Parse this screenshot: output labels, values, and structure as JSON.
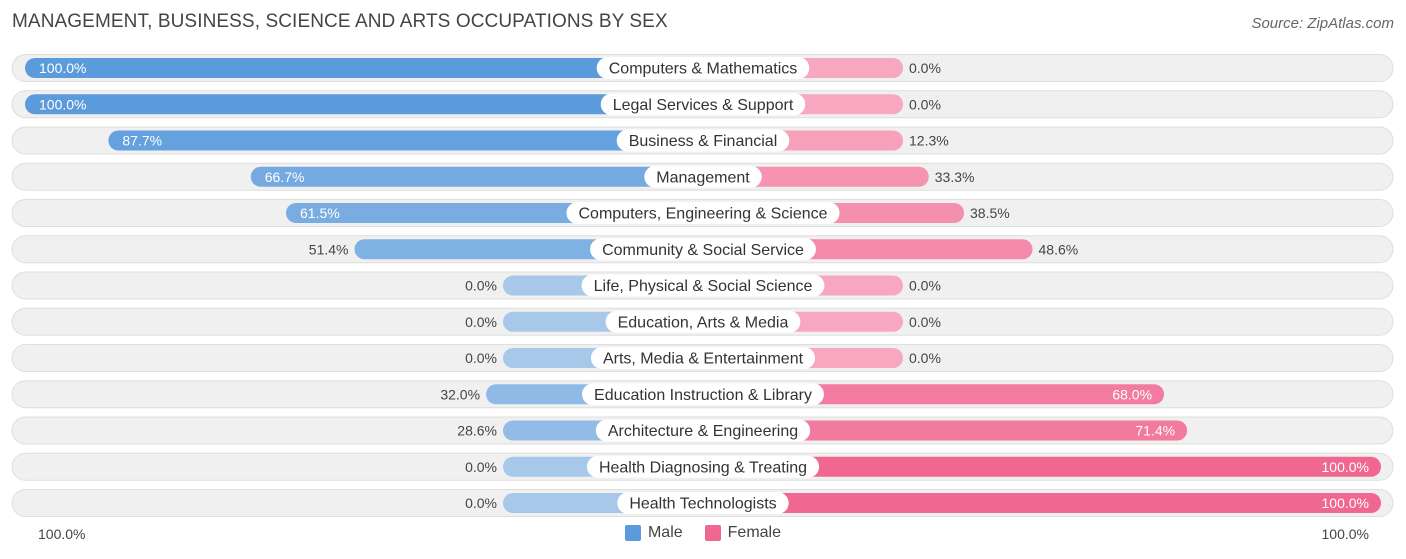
{
  "title": "MANAGEMENT, BUSINESS, SCIENCE AND ARTS OCCUPATIONS BY SEX",
  "source": "Source: ZipAtlas.com",
  "colors": {
    "male_strong": "#5b9bdc",
    "male_light": "#a8c8ea",
    "female_strong": "#f06892",
    "female_light": "#f7a8c0",
    "row_bg": "#f0f0f0",
    "row_border": "#dedede"
  },
  "legend": {
    "male": "Male",
    "female": "Female"
  },
  "axis": {
    "left": "100.0%",
    "right": "100.0%"
  },
  "chart_data": {
    "type": "bar",
    "orientation": "horizontal-diverging",
    "title": "MANAGEMENT, BUSINESS, SCIENCE AND ARTS OCCUPATIONS BY SEX",
    "categories": [
      "Computers & Mathematics",
      "Legal Services & Support",
      "Business & Financial",
      "Management",
      "Computers, Engineering & Science",
      "Community & Social Service",
      "Life, Physical & Social Science",
      "Education, Arts & Media",
      "Arts, Media & Entertainment",
      "Education Instruction & Library",
      "Architecture & Engineering",
      "Health Diagnosing & Treating",
      "Health Technologists"
    ],
    "series": [
      {
        "name": "Male",
        "values": [
          100.0,
          100.0,
          87.7,
          66.7,
          61.5,
          51.4,
          0.0,
          0.0,
          0.0,
          32.0,
          28.6,
          0.0,
          0.0
        ],
        "labels": [
          "100.0%",
          "100.0%",
          "87.7%",
          "66.7%",
          "61.5%",
          "51.4%",
          "0.0%",
          "0.0%",
          "0.0%",
          "32.0%",
          "28.6%",
          "0.0%",
          "0.0%"
        ]
      },
      {
        "name": "Female",
        "values": [
          0.0,
          0.0,
          12.3,
          33.3,
          38.5,
          48.6,
          0.0,
          0.0,
          0.0,
          68.0,
          71.4,
          100.0,
          100.0
        ],
        "labels": [
          "0.0%",
          "0.0%",
          "12.3%",
          "33.3%",
          "38.5%",
          "48.6%",
          "0.0%",
          "0.0%",
          "0.0%",
          "68.0%",
          "71.4%",
          "100.0%",
          "100.0%"
        ]
      }
    ],
    "xlim": [
      0,
      100
    ],
    "legend_position": "bottom-center"
  }
}
